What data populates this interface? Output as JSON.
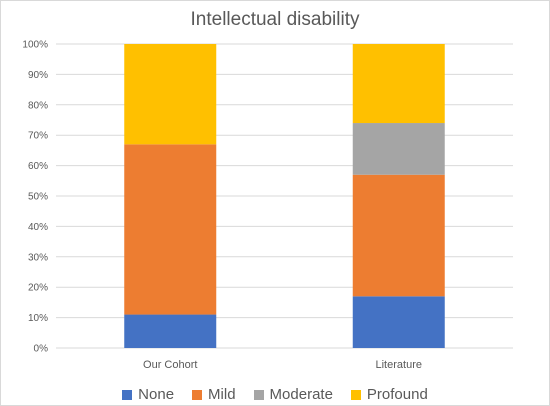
{
  "chart_data": {
    "type": "bar",
    "stacked": true,
    "percent": true,
    "title": "Intellectual disability",
    "categories": [
      "Our Cohort",
      "Literature"
    ],
    "series": [
      {
        "name": "None",
        "color": "#4472C4",
        "values": [
          11,
          17
        ]
      },
      {
        "name": "Mild",
        "color": "#ED7D31",
        "values": [
          56,
          40
        ]
      },
      {
        "name": "Moderate",
        "color": "#A5A5A5",
        "values": [
          0,
          17
        ]
      },
      {
        "name": "Profound",
        "color": "#FFC000",
        "values": [
          33,
          26
        ]
      }
    ],
    "ylim": [
      0,
      100
    ],
    "yticks": [
      "0%",
      "10%",
      "20%",
      "30%",
      "40%",
      "50%",
      "60%",
      "70%",
      "80%",
      "90%",
      "100%"
    ],
    "grid": true,
    "legend_position": "bottom"
  }
}
